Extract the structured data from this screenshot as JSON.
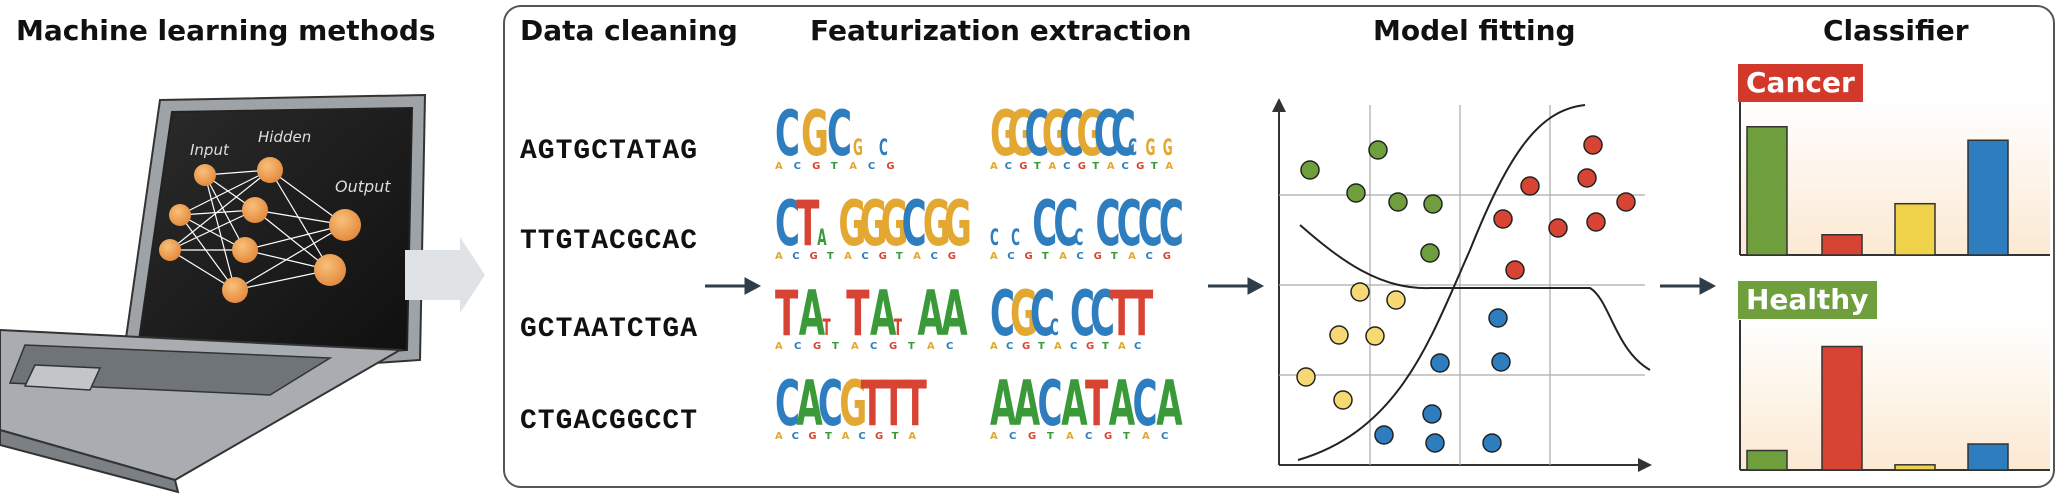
{
  "titles": {
    "ml_methods": "Machine learning methods",
    "data_cleaning": "Data cleaning",
    "featurization": "Featurization extraction",
    "model_fitting": "Model fitting",
    "classifier": "Classifier"
  },
  "network_labels": {
    "input": "Input",
    "hidden": "Hidden",
    "output": "Output"
  },
  "sequences": [
    "AGTGCTATAG",
    "TTGTACGCAC",
    "GCTAATCTGA",
    "CTGACGGCCT"
  ],
  "motifs": [
    [
      "CGCgc",
      "GGCGCGCCcgg"
    ],
    [
      "CTaGGGCGG",
      "ccCCcCCCC"
    ],
    [
      "TAtTAtAA",
      "CGCcCCTT"
    ],
    [
      "CACGTTT",
      "AACATACA"
    ]
  ],
  "classifier": {
    "cancer_label": "Cancer",
    "healthy_label": "Healthy",
    "colors": [
      "#6f9f3c",
      "#d84434",
      "#f0d24a",
      "#2e7dbe"
    ],
    "cancer_values": [
      0.95,
      0.15,
      0.38,
      0.85
    ],
    "healthy_values": [
      0.15,
      0.95,
      0.04,
      0.2
    ]
  },
  "colors": {
    "green": "#6f9f3c",
    "red": "#d84434",
    "yellow": "#f6d874",
    "blue": "#2e7dbe",
    "cancer_bg": "#d2392b",
    "healthy_bg": "#6f9f3c"
  }
}
